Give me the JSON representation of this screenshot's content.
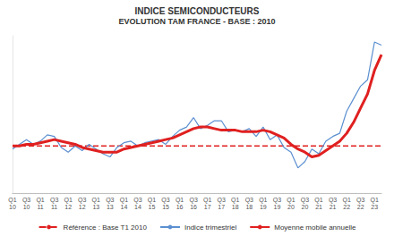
{
  "chart_data": {
    "type": "line",
    "title": "INDICE SEMICONDUCTEURS",
    "subtitle": "EVOLUTION TAM FRANCE - BASE : 2010",
    "categories": [
      "Q1\n10",
      null,
      "Q3\n10",
      null,
      "Q1\n11",
      null,
      "Q3\n11",
      null,
      "Q1\n12",
      null,
      "Q3\n12",
      null,
      "Q1\n13",
      null,
      "Q3\n13",
      null,
      "Q1\n14",
      null,
      "Q3\n14",
      null,
      "Q1\n15",
      null,
      "Q3\n15",
      null,
      "Q1\n16",
      null,
      "Q3\n16",
      null,
      "Q1\n17",
      null,
      "Q3\n17",
      null,
      "Q1\n18",
      null,
      "Q3\n18",
      null,
      "Q1\n19",
      null,
      "Q3\n19",
      null,
      "Q1\n20",
      null,
      "Q3\n20",
      null,
      "Q1\n21",
      null,
      "Q3\n21",
      null,
      "Q1\n22",
      null,
      "Q3\n22",
      null,
      "Q1\n23",
      null
    ],
    "series": [
      {
        "name": "Référence : Base T1 2010",
        "color": "#e02020",
        "line_style": "dashed",
        "values": [
          100,
          100,
          100,
          100,
          100,
          100,
          100,
          100,
          100,
          100,
          100,
          100,
          100,
          100,
          100,
          100,
          100,
          100,
          100,
          100,
          100,
          100,
          100,
          100,
          100,
          100,
          100,
          100,
          100,
          100,
          100,
          100,
          100,
          100,
          100,
          100,
          100,
          100,
          100,
          100,
          100,
          100,
          100,
          100,
          100,
          100,
          100,
          100,
          100,
          100,
          100,
          100,
          100,
          100
        ]
      },
      {
        "name": "Indice trimestriel",
        "color": "#5b8fd0",
        "line_style": "solid",
        "values": [
          98,
          101,
          104,
          101,
          103,
          107,
          106,
          99,
          96,
          100,
          97,
          101,
          98,
          95,
          93,
          99,
          102,
          103,
          100,
          102,
          103,
          104,
          101,
          106,
          110,
          112,
          118,
          111,
          113,
          116,
          116,
          109,
          110,
          109,
          111,
          106,
          112,
          104,
          107,
          99,
          96,
          86,
          90,
          98,
          95,
          103,
          106,
          108,
          122,
          130,
          138,
          142,
          166,
          164
        ]
      },
      {
        "name": "Moyenne mobile annuelle",
        "color": "#e02020",
        "line_style": "solid",
        "values": [
          100,
          100,
          101,
          101,
          102,
          103,
          104,
          103,
          102,
          101,
          99,
          98,
          97,
          96,
          96,
          96,
          98,
          99,
          100,
          101,
          102,
          103,
          104,
          105,
          107,
          109,
          111,
          112,
          112,
          111,
          110,
          110,
          110,
          109,
          109,
          109,
          110,
          109,
          107,
          105,
          101,
          98,
          96,
          93,
          94,
          97,
          100,
          103,
          108,
          115,
          124,
          133,
          148,
          158
        ]
      }
    ],
    "ylim": [
      70,
      170
    ],
    "tick_labels": "x",
    "grid": false,
    "legend": "bottom"
  }
}
